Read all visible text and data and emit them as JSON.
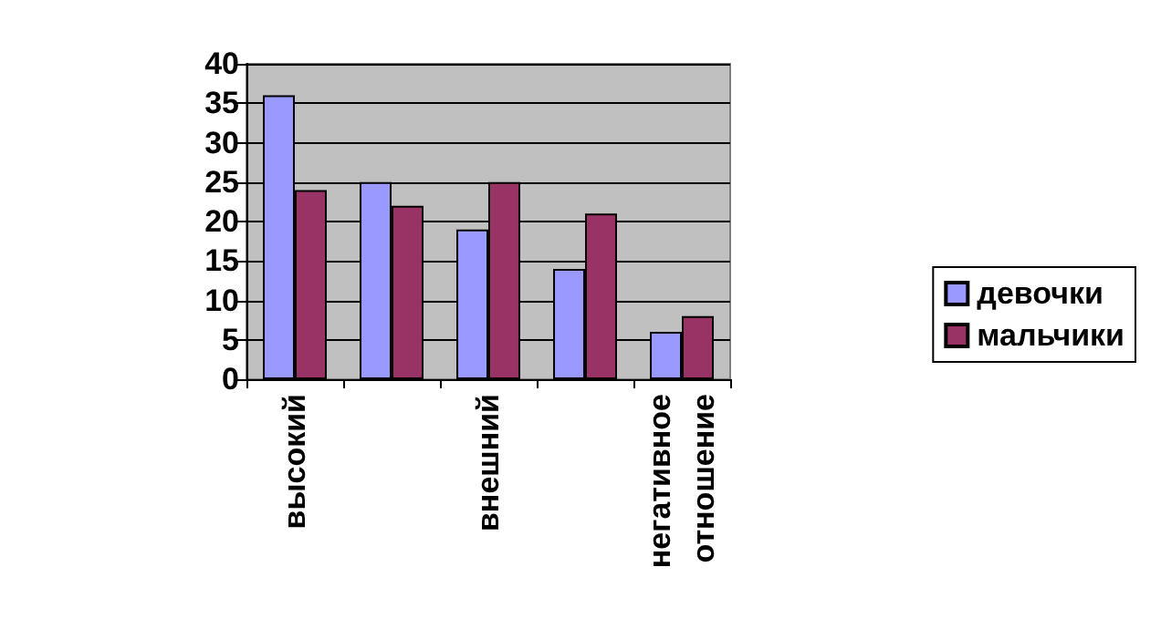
{
  "chart_data": {
    "type": "bar",
    "categories": [
      "высокий",
      null,
      "внешний",
      null,
      "негативное отношение"
    ],
    "series": [
      {
        "name": "девочки",
        "color": "#9999ff",
        "values": [
          36,
          25,
          19,
          14,
          6
        ]
      },
      {
        "name": "мальчики",
        "color": "#993366",
        "values": [
          24,
          22,
          25,
          21,
          8
        ]
      }
    ],
    "ylim": [
      0,
      40
    ],
    "yticks": [
      0,
      5,
      10,
      15,
      20,
      25,
      30,
      35,
      40
    ],
    "grid": "y",
    "legend": "right"
  }
}
